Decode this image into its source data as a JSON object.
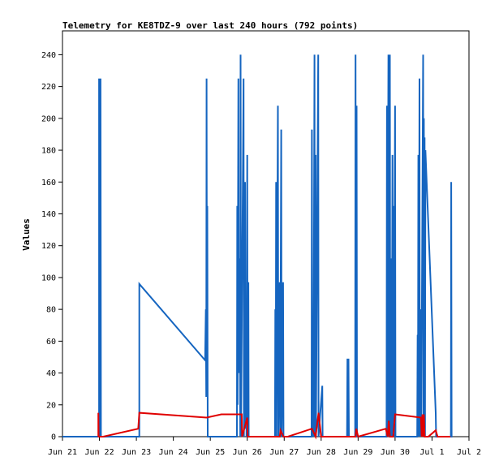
{
  "chart_data": {
    "type": "line",
    "title": "Telemetry for KE8TDZ-9 over last 240 hours (792 points)",
    "xlabel": "",
    "ylabel": "Values",
    "ylim": [
      0,
      255
    ],
    "yticks": [
      0,
      20,
      40,
      60,
      80,
      100,
      120,
      140,
      160,
      180,
      200,
      220,
      240
    ],
    "xlim": [
      0,
      11
    ],
    "xticks": [
      {
        "v": 0,
        "label": "Jun 21"
      },
      {
        "v": 1,
        "label": "Jun 22"
      },
      {
        "v": 2,
        "label": "Jun 23"
      },
      {
        "v": 3,
        "label": "Jun 24"
      },
      {
        "v": 4,
        "label": "Jun 25"
      },
      {
        "v": 5,
        "label": "Jun 26"
      },
      {
        "v": 6,
        "label": "Jun 27"
      },
      {
        "v": 7,
        "label": "Jun 28"
      },
      {
        "v": 8,
        "label": "Jun 29"
      },
      {
        "v": 9,
        "label": "Jun 30"
      },
      {
        "v": 10,
        "label": "Jul 1"
      },
      {
        "v": 11,
        "label": "Jul 2"
      }
    ],
    "grid": false,
    "legend": "none",
    "series": [
      {
        "color": "#1565c0",
        "points": [
          [
            0.0,
            0
          ],
          [
            0.99,
            0
          ],
          [
            0.99,
            225
          ],
          [
            1.0,
            0
          ],
          [
            1.01,
            225
          ],
          [
            1.02,
            0
          ],
          [
            1.03,
            225
          ],
          [
            1.04,
            0
          ],
          [
            2.08,
            0
          ],
          [
            2.08,
            96
          ],
          [
            3.86,
            48
          ],
          [
            3.88,
            80
          ],
          [
            3.89,
            25
          ],
          [
            3.9,
            225
          ],
          [
            3.91,
            25
          ],
          [
            3.92,
            145
          ],
          [
            3.93,
            0
          ],
          [
            4.72,
            0
          ],
          [
            4.73,
            145
          ],
          [
            4.74,
            20
          ],
          [
            4.75,
            128
          ],
          [
            4.76,
            225
          ],
          [
            4.77,
            40
          ],
          [
            4.8,
            112
          ],
          [
            4.81,
            0
          ],
          [
            4.82,
            240
          ],
          [
            4.83,
            0
          ],
          [
            4.9,
            225
          ],
          [
            4.91,
            0
          ],
          [
            4.93,
            64
          ],
          [
            4.94,
            160
          ],
          [
            4.95,
            5
          ],
          [
            4.97,
            80
          ],
          [
            4.98,
            0
          ],
          [
            5.0,
            177
          ],
          [
            5.01,
            0
          ],
          [
            5.03,
            97
          ],
          [
            5.04,
            0
          ],
          [
            5.75,
            0
          ],
          [
            5.76,
            80
          ],
          [
            5.77,
            0
          ],
          [
            5.78,
            160
          ],
          [
            5.79,
            0
          ],
          [
            5.83,
            208
          ],
          [
            5.84,
            0
          ],
          [
            5.88,
            97
          ],
          [
            5.89,
            0
          ],
          [
            5.92,
            193
          ],
          [
            5.93,
            0
          ],
          [
            5.97,
            97
          ],
          [
            5.98,
            0
          ],
          [
            6.1,
            0
          ],
          [
            6.74,
            0
          ],
          [
            6.75,
            193
          ],
          [
            6.76,
            0
          ],
          [
            6.78,
            49
          ],
          [
            6.79,
            0
          ],
          [
            6.82,
            240
          ],
          [
            6.83,
            0
          ],
          [
            6.85,
            177
          ],
          [
            6.86,
            0
          ],
          [
            6.92,
            240
          ],
          [
            6.93,
            0
          ],
          [
            7.03,
            32
          ],
          [
            7.04,
            0
          ],
          [
            7.7,
            0
          ],
          [
            7.71,
            49
          ],
          [
            7.72,
            0
          ],
          [
            7.74,
            49
          ],
          [
            7.75,
            0
          ],
          [
            7.92,
            0
          ],
          [
            7.93,
            240
          ],
          [
            7.94,
            0
          ],
          [
            7.96,
            208
          ],
          [
            7.97,
            0
          ],
          [
            8.77,
            0
          ],
          [
            8.78,
            208
          ],
          [
            8.79,
            0
          ],
          [
            8.82,
            240
          ],
          [
            8.83,
            0
          ],
          [
            8.86,
            240
          ],
          [
            8.87,
            0
          ],
          [
            8.9,
            112
          ],
          [
            8.91,
            0
          ],
          [
            8.93,
            177
          ],
          [
            8.94,
            0
          ],
          [
            8.96,
            145
          ],
          [
            8.97,
            0
          ],
          [
            9.0,
            208
          ],
          [
            9.01,
            0
          ],
          [
            9.6,
            0
          ],
          [
            9.61,
            64
          ],
          [
            9.62,
            0
          ],
          [
            9.63,
            177
          ],
          [
            9.64,
            0
          ],
          [
            9.66,
            225
          ],
          [
            9.67,
            0
          ],
          [
            9.7,
            80
          ],
          [
            9.71,
            0
          ],
          [
            9.76,
            240
          ],
          [
            9.77,
            0
          ],
          [
            9.78,
            200
          ],
          [
            9.79,
            0
          ],
          [
            9.8,
            188
          ],
          [
            9.81,
            0
          ],
          [
            9.82,
            180
          ],
          [
            10.1,
            15
          ],
          [
            10.11,
            0
          ],
          [
            10.5,
            0
          ],
          [
            10.51,
            0
          ],
          [
            10.52,
            160
          ],
          [
            10.53,
            0
          ],
          [
            10.55,
            0
          ]
        ]
      },
      {
        "color": "#e00000",
        "points": [
          [
            0.97,
            0
          ],
          [
            0.97,
            15
          ],
          [
            0.98,
            0
          ],
          [
            1.1,
            0
          ],
          [
            2.05,
            5
          ],
          [
            2.08,
            15
          ],
          [
            3.9,
            12
          ],
          [
            4.3,
            14
          ],
          [
            4.85,
            14
          ],
          [
            4.86,
            0
          ],
          [
            5.0,
            12
          ],
          [
            5.01,
            0
          ],
          [
            5.1,
            0
          ],
          [
            5.88,
            0
          ],
          [
            5.9,
            4
          ],
          [
            5.98,
            0
          ],
          [
            6.1,
            0
          ],
          [
            6.75,
            5
          ],
          [
            6.85,
            0
          ],
          [
            6.93,
            15
          ],
          [
            7.0,
            0
          ],
          [
            7.05,
            0
          ],
          [
            7.93,
            0
          ],
          [
            7.95,
            5
          ],
          [
            8.0,
            0
          ],
          [
            8.75,
            5
          ],
          [
            8.8,
            0
          ],
          [
            8.83,
            10
          ],
          [
            8.86,
            0
          ],
          [
            8.95,
            0
          ],
          [
            9.0,
            14
          ],
          [
            9.7,
            12
          ],
          [
            9.72,
            0
          ],
          [
            9.74,
            14
          ],
          [
            9.76,
            0
          ],
          [
            9.78,
            14
          ],
          [
            9.8,
            0
          ],
          [
            9.9,
            0
          ],
          [
            10.1,
            4
          ],
          [
            10.15,
            0
          ],
          [
            10.5,
            0
          ]
        ]
      }
    ]
  }
}
